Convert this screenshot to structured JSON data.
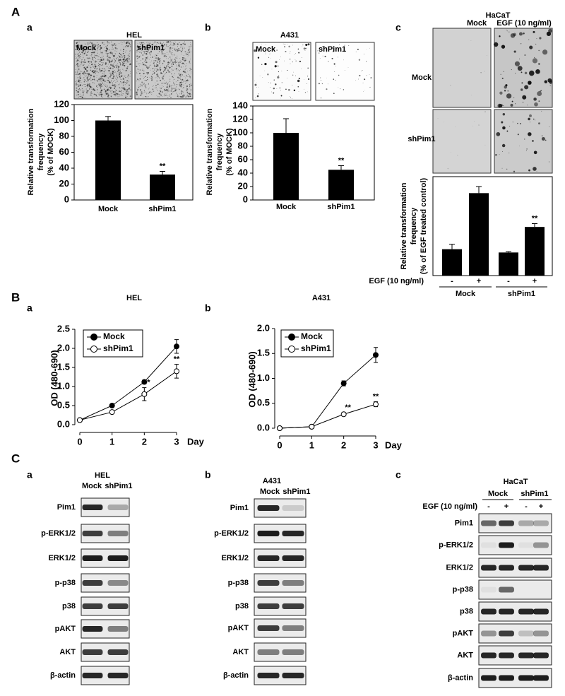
{
  "figure_labels": [
    "A",
    "B",
    "C"
  ],
  "chart_data": [
    {
      "type": "bar",
      "panel_label": "a",
      "title": "HEL",
      "image_columns": [
        "Mock",
        "shPim1"
      ],
      "categories": [
        "Mock",
        "shPim1"
      ],
      "values": [
        100,
        32
      ],
      "errors": [
        5,
        4
      ],
      "significance": [
        null,
        "**"
      ],
      "color": "#000000",
      "ylim": [
        0,
        120
      ],
      "yticks": [
        0,
        20,
        40,
        60,
        80,
        100,
        120
      ],
      "y_label": [
        "Relative transformation",
        "frequency",
        "(% of MOCK)"
      ]
    },
    {
      "type": "bar",
      "panel_label": "b",
      "title": "A431",
      "image_columns": [
        "Mock",
        "shPim1"
      ],
      "categories": [
        "Mock",
        "shPim1"
      ],
      "values": [
        100,
        45
      ],
      "errors": [
        21,
        6
      ],
      "significance": [
        null,
        "**"
      ],
      "color": "#000000",
      "ylim": [
        0,
        140
      ],
      "yticks": [
        0,
        20,
        40,
        60,
        80,
        100,
        120,
        140
      ],
      "y_label": [
        "Relative transformation",
        "frequency",
        "(% of MOCK)"
      ]
    },
    {
      "type": "bar",
      "panel_label": "c",
      "title": "HaCaT",
      "image_columns": [
        "Mock",
        "EGF (10 ng/ml)"
      ],
      "image_rows": [
        "Mock",
        "shPim1"
      ],
      "categories": [
        "-",
        "+",
        "-",
        "+"
      ],
      "groups": [
        "Mock",
        "shPim1"
      ],
      "x_label": "EGF (10 ng/ml)",
      "values": [
        32,
        100,
        28,
        59
      ],
      "errors": [
        6,
        8,
        1,
        4
      ],
      "significance": [
        null,
        null,
        null,
        "**"
      ],
      "color": "#000000",
      "ylim": [
        0,
        120
      ],
      "y_label": [
        "Relative transformation",
        "frequency",
        "(% of EGF treated control)"
      ]
    },
    {
      "type": "line",
      "panel_label": "a",
      "title": "HEL",
      "x": [
        0,
        1,
        2,
        3
      ],
      "xlim": [
        0,
        3
      ],
      "xticks": [
        0,
        1,
        2,
        3
      ],
      "x_label": "Day",
      "ylim": [
        0,
        2.5
      ],
      "yticks": [
        {
          "value": 0,
          "label": "0.0"
        },
        0.5,
        {
          "value": 1,
          "label": "1.0"
        },
        1.5,
        {
          "value": 2,
          "label": "2.0"
        },
        2.5
      ],
      "y_label": "OD (480-690)",
      "legend": "upper left",
      "series": [
        {
          "name": "Mock",
          "color": "#000000",
          "marker_fill": "#000000",
          "values": [
            0.12,
            0.5,
            1.12,
            2.05
          ],
          "errors": [
            0.02,
            0.03,
            0.05,
            0.18
          ]
        },
        {
          "name": "shPim1",
          "color": "#000000",
          "marker_fill": "#ffffff",
          "values": [
            0.12,
            0.33,
            0.8,
            1.4
          ],
          "errors": [
            0.02,
            0.03,
            0.17,
            0.18
          ],
          "significance": [
            null,
            null,
            "*",
            "**"
          ]
        }
      ]
    },
    {
      "type": "line",
      "panel_label": "b",
      "title": "A431",
      "x": [
        0,
        1,
        2,
        3
      ],
      "xlim": [
        0,
        3
      ],
      "xticks": [
        0,
        1,
        2,
        3
      ],
      "x_label": "Day",
      "ylim": [
        0,
        2
      ],
      "yticks": [
        {
          "value": 0,
          "label": "0.0"
        },
        0.5,
        {
          "value": 1,
          "label": "1.0"
        },
        1.5,
        {
          "value": 2,
          "label": "2.0"
        }
      ],
      "y_label": "OD (480-690)",
      "legend": "upper left",
      "series": [
        {
          "name": "Mock",
          "color": "#000000",
          "marker_fill": "#000000",
          "values": [
            0.0,
            0.03,
            0.9,
            1.47
          ],
          "errors": [
            0.01,
            0.01,
            0.05,
            0.15
          ]
        },
        {
          "name": "shPim1",
          "color": "#000000",
          "marker_fill": "#ffffff",
          "values": [
            0.0,
            0.03,
            0.28,
            0.48
          ],
          "errors": [
            0.01,
            0.01,
            0.03,
            0.05
          ],
          "significance": [
            null,
            null,
            "**",
            "**"
          ]
        }
      ]
    }
  ],
  "blots": [
    {
      "panel_label": "a",
      "title": "HEL",
      "columns": [
        "Mock",
        "shPim1"
      ],
      "rows": [
        "Pim1",
        "p-ERK1/2",
        "ERK1/2",
        "p-p38",
        "p38",
        "pAKT",
        "AKT",
        "β-actin"
      ]
    },
    {
      "panel_label": "b",
      "title": "A431",
      "columns": [
        "Mock",
        "shPim1"
      ],
      "rows": [
        "Pim1",
        "p-ERK1/2",
        "ERK1/2",
        "p-p38",
        "p38",
        "pAKT",
        "AKT",
        "β-actin"
      ]
    },
    {
      "panel_label": "c",
      "title": "HaCaT",
      "columns": [
        "Mock",
        "shPim1"
      ],
      "treatment_label": "EGF (10 ng/ml)",
      "treatment": [
        "-",
        "+",
        "-",
        "+"
      ],
      "rows": [
        "Pim1",
        "p-ERK1/2",
        "ERK1/2",
        "p-p38",
        "p38",
        "pAKT",
        "AKT",
        "β-actin"
      ]
    }
  ]
}
